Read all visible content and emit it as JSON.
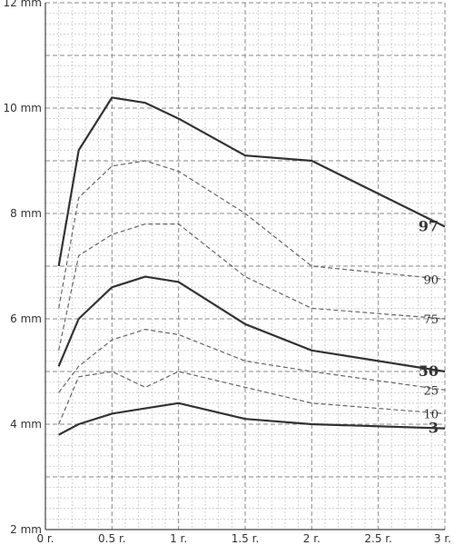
{
  "chart_data": {
    "type": "line",
    "title": "",
    "xlabel": "",
    "ylabel": "",
    "xlim": [
      0,
      3
    ],
    "ylim": [
      2,
      12
    ],
    "grid": true,
    "x_ticks": [
      {
        "value": 0,
        "label": "0 r."
      },
      {
        "value": 0.5,
        "label": "0.5 r."
      },
      {
        "value": 1,
        "label": "1 r."
      },
      {
        "value": 1.5,
        "label": "1.5 r."
      },
      {
        "value": 2,
        "label": "2 r."
      },
      {
        "value": 2.5,
        "label": "2.5 r."
      },
      {
        "value": 3,
        "label": "3 r."
      }
    ],
    "y_ticks": [
      {
        "value": 2,
        "label": "2 mm"
      },
      {
        "value": 4,
        "label": "4 mm"
      },
      {
        "value": 6,
        "label": "6 mm"
      },
      {
        "value": 8,
        "label": "8 mm"
      },
      {
        "value": 10,
        "label": "10 mm"
      },
      {
        "value": 12,
        "label": "12 mm"
      }
    ],
    "x": [
      0.1,
      0.25,
      0.5,
      0.75,
      1,
      1.5,
      2,
      3
    ],
    "series": [
      {
        "name": "3",
        "values": [
          3.8,
          4.0,
          4.2,
          4.3,
          4.4,
          4.1,
          4.0,
          3.92
        ],
        "style": "solid",
        "color": "#333333"
      },
      {
        "name": "10",
        "values": [
          4.0,
          4.9,
          5.0,
          4.7,
          5.0,
          4.7,
          4.4,
          4.2
        ],
        "style": "dashed",
        "color": "#666666"
      },
      {
        "name": "25",
        "values": [
          4.6,
          5.1,
          5.6,
          5.8,
          5.7,
          5.2,
          5.0,
          4.65
        ],
        "style": "dashed",
        "color": "#666666"
      },
      {
        "name": "50",
        "values": [
          5.1,
          6.0,
          6.6,
          6.8,
          6.7,
          5.9,
          5.4,
          5.0
        ],
        "style": "solid",
        "color": "#333333"
      },
      {
        "name": "75",
        "values": [
          5.4,
          7.2,
          7.6,
          7.8,
          7.8,
          6.8,
          6.2,
          6.0
        ],
        "style": "dashed",
        "color": "#666666"
      },
      {
        "name": "90",
        "values": [
          6.2,
          8.3,
          8.9,
          9.0,
          8.8,
          8.0,
          7.0,
          6.75
        ],
        "style": "dashed",
        "color": "#666666"
      },
      {
        "name": "97",
        "values": [
          7.0,
          9.2,
          10.2,
          10.1,
          9.8,
          9.1,
          9.0,
          7.75
        ],
        "style": "solid",
        "color": "#333333"
      }
    ]
  }
}
